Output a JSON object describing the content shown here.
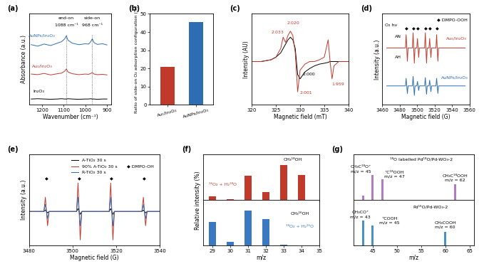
{
  "chart_data": [
    {
      "type": "line",
      "panel": "(a)",
      "x_label": "Wavenumber (cm⁻¹)",
      "y_label": "Absorbance (a.u.)",
      "xlim": [
        1260,
        880
      ],
      "ylim": [
        -0.1,
        3.0
      ],
      "xticks": [
        1200,
        1100,
        1000,
        900
      ],
      "tick_labels": "x",
      "vlines": [
        1088,
        968
      ],
      "x": [
        1250,
        1220,
        1190,
        1160,
        1130,
        1110,
        1095,
        1088,
        1080,
        1060,
        1030,
        1000,
        985,
        975,
        968,
        960,
        945,
        920,
        900
      ],
      "series": [
        {
          "color": "#2e6db4",
          "values": [
            1.95,
            1.9,
            1.97,
            1.92,
            2.0,
            2.05,
            2.15,
            2.25,
            2.1,
            2.0,
            1.95,
            1.98,
            1.97,
            2.05,
            2.15,
            2.02,
            1.96,
            1.98,
            1.94
          ]
        },
        {
          "color": "#c0392b",
          "values": [
            0.95,
            0.93,
            0.97,
            0.92,
            0.96,
            0.98,
            1.05,
            1.12,
            1.02,
            0.96,
            0.93,
            0.95,
            0.94,
            0.97,
            1.0,
            0.95,
            0.93,
            0.94,
            0.92
          ]
        },
        {
          "color": "#000000",
          "values": [
            0.1,
            0.11,
            0.1,
            0.09,
            0.1,
            0.11,
            0.1,
            0.1,
            0.11,
            0.1,
            0.09,
            0.1,
            0.1,
            0.11,
            0.1,
            0.1,
            0.09,
            0.1,
            0.1
          ]
        }
      ],
      "annotations": [
        {
          "text": "end-on",
          "x": 1088,
          "y": 2.85
        },
        {
          "text": "side-on",
          "x": 968,
          "y": 2.85
        },
        {
          "text": "1088 cm⁻¹",
          "x": 1088,
          "y": 2.6
        },
        {
          "text": "968 cm⁻¹",
          "x": 968,
          "y": 2.6
        },
        {
          "text": "AuNPs/In₂O₃",
          "x": 1200,
          "y": 2.25,
          "color": "#2e6db4"
        },
        {
          "text": "Au₁/In₂O₃",
          "x": 1200,
          "y": 1.22,
          "color": "#c0392b"
        },
        {
          "text": "In₂O₃",
          "x": 1215,
          "y": 0.35,
          "color": "#000000"
        }
      ]
    },
    {
      "type": "bar",
      "panel": "(b)",
      "y_label": "Ratio of side-on O₂ adsorption configuration (%)",
      "categories": [
        "Au₁/In₂O₃",
        "AuNPs/In₂O₃"
      ],
      "values": [
        21,
        45.5
      ],
      "colors": [
        "#c0392b",
        "#2e6db4"
      ],
      "ylim": [
        0,
        50
      ],
      "yticks": [
        0,
        10,
        20,
        30,
        40,
        50
      ]
    },
    {
      "type": "line",
      "panel": "(c)",
      "x_label": "Magnetic field (mT)",
      "y_label": "Intensity (AU)",
      "xlim": [
        320,
        340
      ],
      "ylim": [
        -0.5,
        0.55
      ],
      "xticks": [
        320,
        325,
        330,
        335,
        340
      ],
      "tick_labels": "x",
      "x": [
        320,
        322,
        324,
        325,
        326,
        326.5,
        327,
        327.5,
        328,
        328.5,
        329,
        329.5,
        330,
        331,
        332,
        333,
        334,
        335,
        335.8,
        336.2,
        336.6,
        337,
        338,
        340
      ],
      "series": [
        {
          "color": "#000000",
          "values": [
            0,
            0,
            0.02,
            0.05,
            0.1,
            0.15,
            0.2,
            0.25,
            0.28,
            0.25,
            0.15,
            -0.15,
            -0.2,
            -0.12,
            -0.08,
            -0.05,
            -0.03,
            -0.02,
            -0.01,
            0,
            0,
            0,
            0,
            0
          ]
        },
        {
          "color": "#c0392b",
          "values": [
            0,
            0,
            0.02,
            0.05,
            0.15,
            0.28,
            0.22,
            0.3,
            0.35,
            0.3,
            0.1,
            -0.35,
            -0.1,
            -0.03,
            0,
            0,
            0.02,
            0.05,
            0.25,
            0.0,
            -0.2,
            -0.05,
            0,
            0
          ]
        }
      ],
      "annotations": [
        {
          "text": "2.033",
          "x": 325.3,
          "y": 0.34,
          "color": "#c0392b"
        },
        {
          "text": "2.020",
          "x": 328.6,
          "y": 0.44,
          "color": "#c0392b"
        },
        {
          "text": "2.000",
          "x": 331.8,
          "y": -0.15,
          "color": "#000000"
        },
        {
          "text": "2.001",
          "x": 331.2,
          "y": -0.36,
          "color": "#c0392b"
        },
        {
          "text": "1.959",
          "x": 337.8,
          "y": -0.26,
          "color": "#c0392b"
        }
      ]
    },
    {
      "type": "line",
      "panel": "(d)",
      "x_label": "Magnetic field (G)",
      "y_label": "Intensity (a.u.)",
      "xlim": [
        3460,
        3560
      ],
      "ylim": [
        -0.5,
        1.9
      ],
      "xticks": [
        3460,
        3480,
        3500,
        3520,
        3540,
        3560
      ],
      "tick_labels": "x",
      "x": [
        3465,
        3486.5,
        3487.3,
        3488.7,
        3489.5,
        3494.5,
        3495.3,
        3496.7,
        3497.5,
        3499.5,
        3500.3,
        3501.7,
        3502.5,
        3508.5,
        3509.3,
        3510.7,
        3511.5,
        3513.5,
        3514.3,
        3515.7,
        3516.5,
        3521.5,
        3522.3,
        3523.7,
        3524.5,
        3555
      ],
      "series": [
        {
          "color": "#c0392b",
          "values": [
            1,
            1,
            1.35,
            0.65,
            1,
            1,
            1.4,
            0.6,
            1,
            1,
            1.25,
            0.75,
            1,
            1,
            1.4,
            0.6,
            1,
            1,
            1.25,
            0.75,
            1,
            1,
            1.35,
            0.65,
            1,
            1
          ]
        },
        {
          "color": "#2e6db4",
          "values": [
            0,
            0,
            0.2,
            -0.2,
            0,
            0,
            0.25,
            -0.25,
            0,
            0,
            0.12,
            -0.12,
            0,
            0,
            0.22,
            -0.22,
            0,
            0,
            0.15,
            -0.15,
            0,
            0,
            0.2,
            -0.2,
            0,
            0
          ]
        }
      ],
      "annotations": [
        {
          "text": "O₂ hν",
          "x": 3470,
          "y": 1.6
        },
        {
          "text": "◆ DMPO-OOH",
          "x": 3540,
          "y": 1.75
        },
        {
          "text": "◆",
          "x": 3488,
          "y": 1.5
        },
        {
          "text": "◆",
          "x": 3496,
          "y": 1.5
        },
        {
          "text": "◆",
          "x": 3501,
          "y": 1.5
        },
        {
          "text": "◆",
          "x": 3510,
          "y": 1.5
        },
        {
          "text": "◆",
          "x": 3515,
          "y": 1.5
        },
        {
          "text": "◆",
          "x": 3523,
          "y": 1.5
        },
        {
          "text": "AN",
          "x": 3478,
          "y": 1.3
        },
        {
          "text": "AH",
          "x": 3478,
          "y": 0.75
        },
        {
          "text": "Au₁/In₂O₃",
          "x": 3545,
          "y": 1.25,
          "color": "#c0392b"
        },
        {
          "text": "AuNPs/In₂O₃",
          "x": 3543,
          "y": 0.22,
          "color": "#2e6db4"
        }
      ]
    },
    {
      "type": "line",
      "panel": "(e)",
      "x_label": "Magnetic field (G)",
      "y_label": "Intensity (a.u.)",
      "xlim": [
        3480,
        3540
      ],
      "ylim": [
        -1.2,
        2.0
      ],
      "xticks": [
        3480,
        3500,
        3520,
        3540
      ],
      "tick_labels": "x",
      "legend": "upper center",
      "x": [
        3480,
        3486.8,
        3487.5,
        3488.5,
        3489.2,
        3501.8,
        3502.5,
        3503.5,
        3504.2,
        3516.8,
        3517.5,
        3518.5,
        3519.2,
        3531.8,
        3532.5,
        3533.5,
        3534.2,
        3540
      ],
      "series": [
        {
          "name": "A-TiO₂ 30 s",
          "color": "#000000",
          "values": [
            0,
            0,
            0.05,
            -0.05,
            0,
            0,
            0.1,
            -0.1,
            0,
            0,
            0.1,
            -0.1,
            0,
            0,
            0.05,
            -0.05,
            0,
            0
          ]
        },
        {
          "name": "90% A-TiO₂ 30 s",
          "color": "#c0392b",
          "values": [
            0,
            0,
            0.5,
            -0.5,
            0,
            0,
            1,
            -1,
            0,
            0,
            1,
            -1,
            0,
            0,
            0.5,
            -0.5,
            0,
            0
          ]
        },
        {
          "name": "R-TiO₂ 30 s",
          "color": "#2e6db4",
          "values": [
            0,
            0,
            0.25,
            -0.25,
            0,
            0,
            0.5,
            -0.5,
            0,
            0,
            0.5,
            -0.5,
            0,
            0,
            0.25,
            -0.25,
            0,
            0
          ]
        }
      ],
      "annotations": [
        {
          "text": "◆ DMPO-OH",
          "x": 3531,
          "y": 1.6
        },
        {
          "text": "◆",
          "x": 3488,
          "y": 1.15
        },
        {
          "text": "◆",
          "x": 3503,
          "y": 1.15
        },
        {
          "text": "◆",
          "x": 3518,
          "y": 1.15
        },
        {
          "text": "◆",
          "x": 3533,
          "y": 1.15
        }
      ]
    },
    {
      "type": "bar",
      "panel": "(f)",
      "x_label": "m/z",
      "y_label": "Relative intensity (%)",
      "xlim": [
        28.5,
        35
      ],
      "ylim": [
        0,
        130
      ],
      "xticks": [
        29,
        30,
        31,
        32,
        33,
        34,
        35
      ],
      "tick_labels": "x",
      "series": [
        {
          "name": "¹⁶O₂ + H₂¹⁸O",
          "color": "#c0392b",
          "x": [
            29,
            30,
            31,
            32,
            33,
            34
          ],
          "values": [
            10,
            2,
            70,
            22,
            100,
            72
          ],
          "annotations": [
            {
              "text": "¹⁶O₂ + H₂¹⁸O",
              "x": 29.6,
              "y": 45,
              "color": "#c0392b"
            },
            {
              "text": "CH₃¹⁸OH",
              "x": 33.5,
              "y": 115
            }
          ]
        },
        {
          "name": "¹⁸O₂ + H₂¹⁶O",
          "color": "#3a78c2",
          "x": [
            29,
            30,
            31,
            32,
            33
          ],
          "values": [
            68,
            10,
            100,
            75,
            3
          ],
          "annotations": [
            {
              "text": "¹⁸O₂ + H₂¹⁶O",
              "x": 33.9,
              "y": 55,
              "color": "#3a78c2"
            },
            {
              "text": "CH₃¹⁶OH",
              "x": 33.9,
              "y": 90
            }
          ]
        }
      ]
    },
    {
      "type": "bar",
      "panel": "(g)",
      "x_label": "m/z",
      "xlim": [
        41,
        66
      ],
      "ylim": [
        0,
        100
      ],
      "xticks": [
        45,
        50,
        55,
        60,
        65
      ],
      "tick_labels": "x",
      "series": [
        {
          "name": "¹⁸O labelled Pd¹⁸O/Pd-WO₃-2",
          "color": "#b07cc6",
          "x": [
            43,
            45,
            47,
            62
          ],
          "values": [
            10,
            55,
            45,
            35
          ],
          "annotations": [
            {
              "text": "¹⁸O labelled Pd¹⁸O/Pd-WO₃-2",
              "x": 55,
              "y": 90
            },
            {
              "text": "CH₃C¹⁸O⁺\nm/z = 45",
              "x": 42.5,
              "y": 68
            },
            {
              "text": "⁺C¹⁸OOH\nm/z = 47",
              "x": 49.5,
              "y": 56
            },
            {
              "text": "CH₃C¹⁸OOH\nm/z = 62",
              "x": 62,
              "y": 48
            }
          ]
        },
        {
          "name": "Pd¹⁶O/Pd-WO₃-2",
          "color": "#4a90c8",
          "x": [
            43,
            45,
            60
          ],
          "values": [
            55,
            45,
            30
          ],
          "annotations": [
            {
              "text": "Pd¹⁶O/Pd-WO₃-2",
              "x": 57,
              "y": 85
            },
            {
              "text": "CH₃CO⁺\nm/z = 43",
              "x": 42.5,
              "y": 68
            },
            {
              "text": "⁺COOH\nm/z = 45",
              "x": 48.5,
              "y": 55
            },
            {
              "text": "CH₃COOH\nm/z = 60",
              "x": 60,
              "y": 45
            }
          ]
        }
      ]
    }
  ]
}
